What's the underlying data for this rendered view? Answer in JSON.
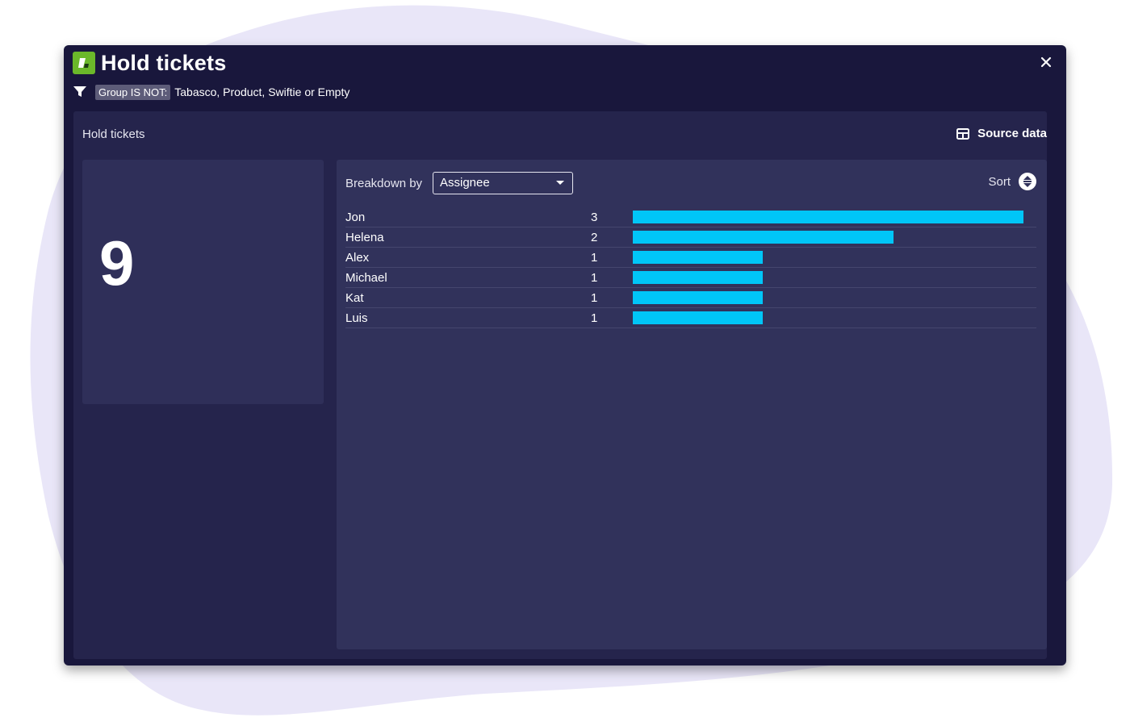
{
  "window": {
    "title": "Hold tickets",
    "close_label": "×"
  },
  "filter": {
    "chip_label": "Group IS NOT:",
    "value": "Tabasco, Product, Swiftie or Empty"
  },
  "panel": {
    "title": "Hold tickets",
    "source_data_label": "Source data"
  },
  "metric": {
    "value": "9"
  },
  "breakdown": {
    "label": "Breakdown by",
    "selected": "Assignee",
    "sort_label": "Sort"
  },
  "chart_data": {
    "type": "bar",
    "orientation": "horizontal",
    "categories": [
      "Jon",
      "Helena",
      "Alex",
      "Michael",
      "Kat",
      "Luis"
    ],
    "values": [
      3,
      2,
      1,
      1,
      1,
      1
    ],
    "xlim": [
      0,
      3
    ],
    "bar_color": "#00c6f8"
  },
  "colors": {
    "window_bg": "#19173c",
    "panel_bg": "#25244c",
    "card_bg": "#2f2f59",
    "accent": "#00c6f8",
    "logo_green": "#6bb82a"
  },
  "icons": {
    "logo": "app-logo-icon",
    "filter": "filter-icon",
    "source": "table-icon",
    "sort": "sort-icon",
    "close": "close-icon",
    "dropdown": "caret-down-icon"
  }
}
